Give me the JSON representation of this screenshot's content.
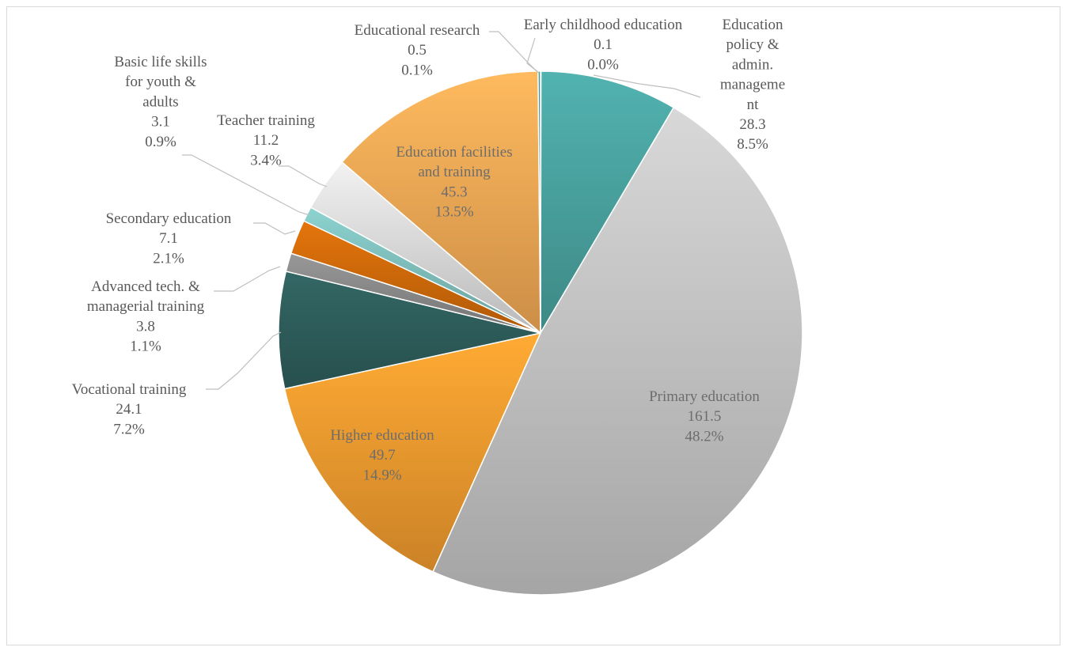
{
  "chart_data": {
    "type": "pie",
    "title": "",
    "start_angle_deg": 0,
    "direction": "clockwise",
    "legend": "none",
    "slices": [
      {
        "label": "Early childhood education",
        "value": 0.1,
        "percent": "0.0%",
        "color": "#4a9e9b"
      },
      {
        "label": "Education policy & admin. management",
        "value": 28.3,
        "percent": "8.5%",
        "color": "#4aa3a0"
      },
      {
        "label": "Primary education",
        "value": 161.5,
        "percent": "48.2%",
        "color": "#c4c4c4"
      },
      {
        "label": "Higher education",
        "value": 49.7,
        "percent": "14.9%",
        "color": "#f29b2f"
      },
      {
        "label": "Vocational training",
        "value": 24.1,
        "percent": "7.2%",
        "color": "#2e5e5c"
      },
      {
        "label": "Advanced tech. & managerial training",
        "value": 3.8,
        "percent": "1.1%",
        "color": "#8a8a8a"
      },
      {
        "label": "Secondary education",
        "value": 7.1,
        "percent": "2.1%",
        "color": "#d06a0a"
      },
      {
        "label": "Basic life skills for youth & adults",
        "value": 3.1,
        "percent": "0.9%",
        "color": "#7fc0bd"
      },
      {
        "label": "Teacher training",
        "value": 11.2,
        "percent": "3.4%",
        "color": "#dcdcdc"
      },
      {
        "label": "Education facilities and training",
        "value": 45.3,
        "percent": "13.5%",
        "color": "#f3a955"
      },
      {
        "label": "Educational research",
        "value": 0.5,
        "percent": "0.1%",
        "color": "#3d8c89"
      }
    ],
    "data_labels": [
      {
        "lines": [
          "Early childhood education",
          "0.1",
          "0.0%"
        ]
      },
      {
        "lines": [
          "Education",
          "policy &",
          "admin.",
          "manageme",
          "nt",
          "28.3",
          "8.5%"
        ]
      },
      {
        "lines": [
          "Primary education",
          "161.5",
          "48.2%"
        ]
      },
      {
        "lines": [
          "Higher education",
          "49.7",
          "14.9%"
        ]
      },
      {
        "lines": [
          "Vocational training",
          "24.1",
          "7.2%"
        ]
      },
      {
        "lines": [
          "Advanced tech. &",
          "managerial training",
          "3.8",
          "1.1%"
        ]
      },
      {
        "lines": [
          "Secondary education",
          "7.1",
          "2.1%"
        ]
      },
      {
        "lines": [
          "Basic life skills",
          "for youth &",
          "adults",
          "3.1",
          "0.9%"
        ]
      },
      {
        "lines": [
          "Teacher training",
          "11.2",
          "3.4%"
        ]
      },
      {
        "lines": [
          "Education facilities",
          "and training",
          "45.3",
          "13.5%"
        ]
      },
      {
        "lines": [
          "Educational research",
          "0.5",
          "0.1%"
        ]
      }
    ]
  }
}
